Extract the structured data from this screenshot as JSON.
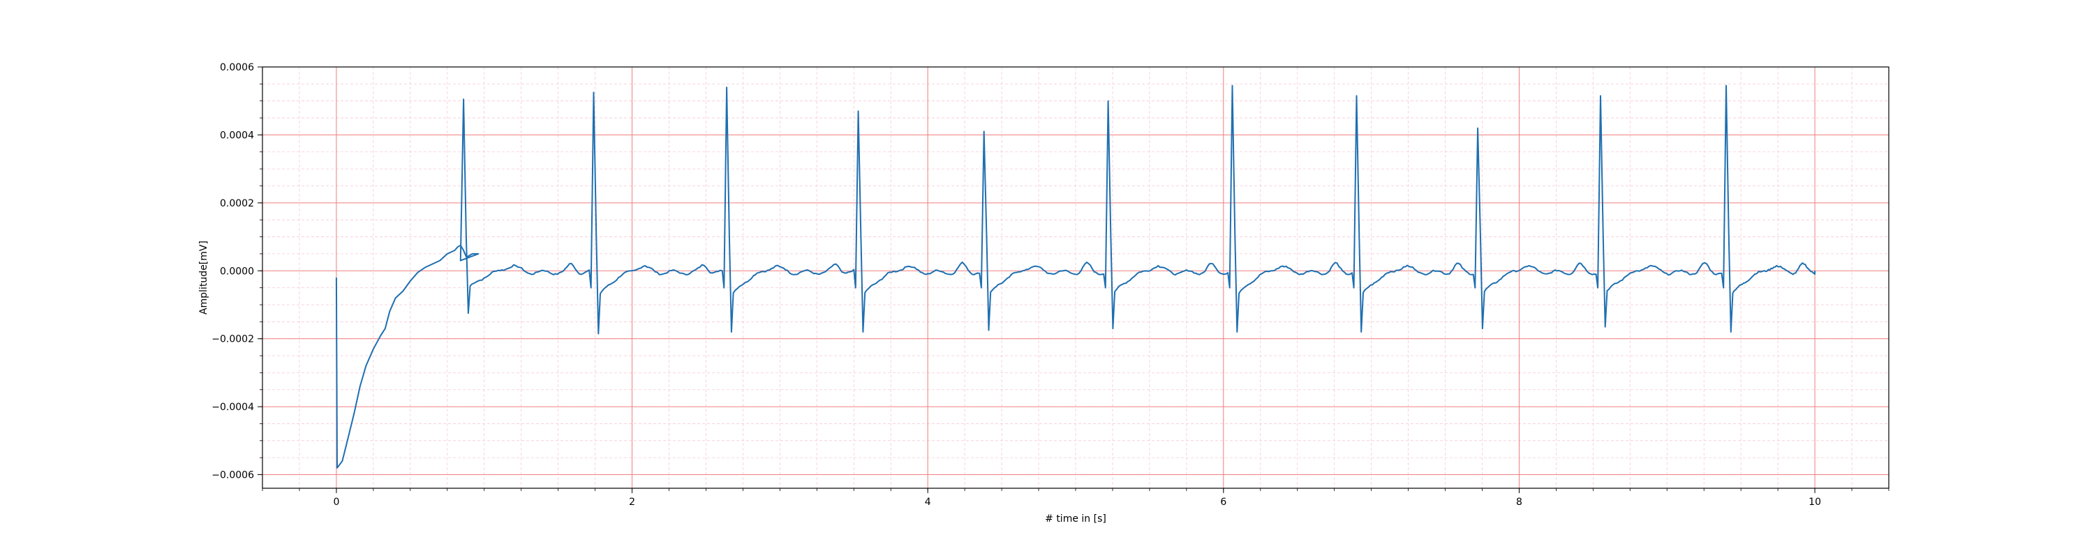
{
  "chart_data": {
    "type": "line",
    "title": "",
    "xlabel": "# time in [s]",
    "ylabel": "Amplitude[mV]",
    "xlim": [
      -0.5,
      10.5
    ],
    "ylim": [
      -0.00064,
      0.0006
    ],
    "x_ticks": [
      0,
      2,
      4,
      6,
      8,
      10
    ],
    "x_tick_labels": [
      "0",
      "2",
      "4",
      "6",
      "8",
      "10"
    ],
    "y_ticks": [
      -0.0006,
      -0.0004,
      -0.0002,
      0.0,
      0.0002,
      0.0004,
      0.0006
    ],
    "y_tick_labels": [
      "−0.0006",
      "−0.0004",
      "−0.0002",
      "0.0000",
      "0.0002",
      "0.0004",
      "0.0006"
    ],
    "x_minor_step": 0.25,
    "y_minor_step": 5e-05,
    "grid": {
      "major": true,
      "minor": true,
      "major_color": "#f08080",
      "minor_color": "#f7c9d4"
    },
    "line_color": "#1f6fb0",
    "baseline_start": [
      [
        0.0,
        -2e-05
      ],
      [
        0.005,
        -0.00058
      ],
      [
        0.04,
        -0.00056
      ],
      [
        0.08,
        -0.00049
      ],
      [
        0.12,
        -0.00042
      ],
      [
        0.16,
        -0.00034
      ],
      [
        0.2,
        -0.00028
      ],
      [
        0.25,
        -0.00023
      ],
      [
        0.3,
        -0.00019
      ],
      [
        0.33,
        -0.00017
      ],
      [
        0.36,
        -0.00012
      ],
      [
        0.4,
        -8e-05
      ],
      [
        0.45,
        -6e-05
      ],
      [
        0.5,
        -3e-05
      ],
      [
        0.55,
        -5e-06
      ],
      [
        0.6,
        1e-05
      ],
      [
        0.65,
        2e-05
      ],
      [
        0.7,
        3e-05
      ],
      [
        0.75,
        5e-05
      ],
      [
        0.8,
        6e-05
      ],
      [
        0.82,
        7e-05
      ],
      [
        0.84,
        7.5e-05
      ],
      [
        0.86,
        6e-05
      ],
      [
        0.88,
        4e-05
      ],
      [
        0.92,
        5e-05
      ],
      [
        0.96,
        5e-05
      ]
    ],
    "beats": [
      {
        "t": 0.86,
        "r": 0.000505,
        "s": -0.000125
      },
      {
        "t": 1.74,
        "r": 0.000525,
        "s": -0.000185
      },
      {
        "t": 2.64,
        "r": 0.00054,
        "s": -0.00018
      },
      {
        "t": 3.53,
        "r": 0.00047,
        "s": -0.00018
      },
      {
        "t": 4.38,
        "r": 0.00041,
        "s": -0.000175
      },
      {
        "t": 5.22,
        "r": 0.0005,
        "s": -0.00017
      },
      {
        "t": 6.06,
        "r": 0.000545,
        "s": -0.00018
      },
      {
        "t": 6.9,
        "r": 0.000515,
        "s": -0.00018
      },
      {
        "t": 7.72,
        "r": 0.00042,
        "s": -0.00017
      },
      {
        "t": 8.55,
        "r": 0.000515,
        "s": -0.000165
      },
      {
        "t": 9.4,
        "r": 0.000545,
        "s": -0.00018
      }
    ],
    "end_time": 10.0
  }
}
